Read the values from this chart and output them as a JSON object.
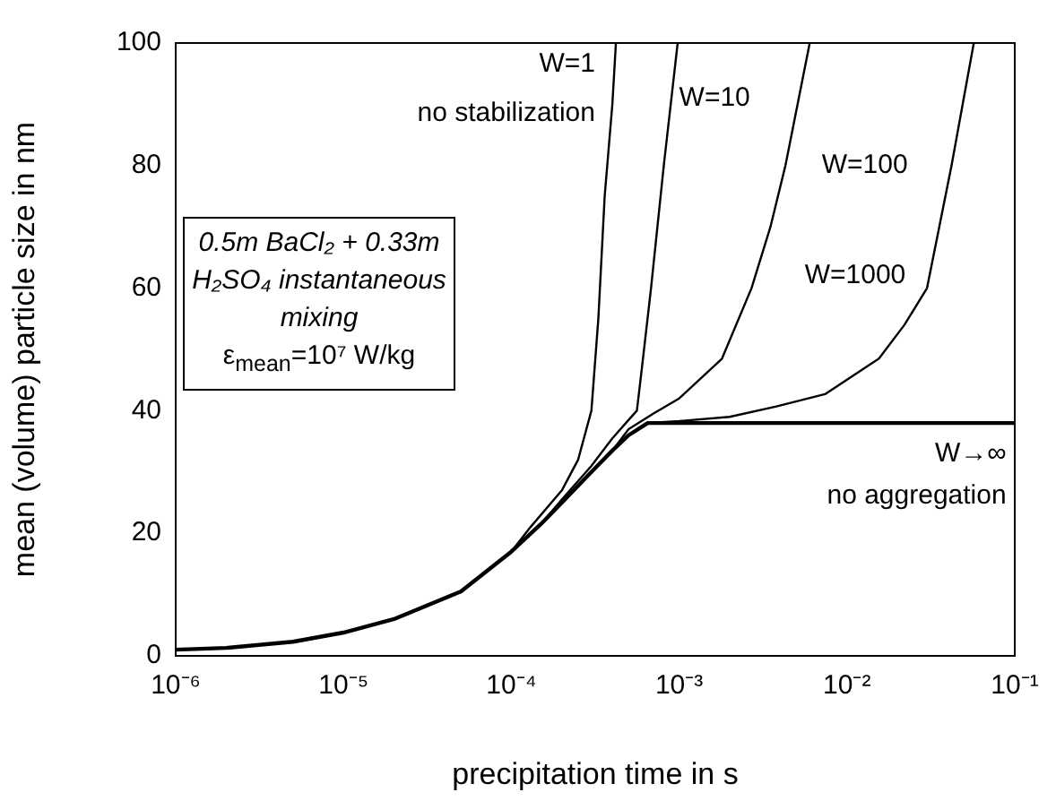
{
  "chart_data": {
    "type": "line",
    "xlabel": "precipitation time in s",
    "ylabel": "mean (volume) particle size in nm",
    "log": "x",
    "grid": false,
    "legend": false,
    "marker": "none",
    "line_style": "solid",
    "xlim": [
      1e-06,
      0.1
    ],
    "xticks": [
      {
        "value": 1e-06,
        "label": "10⁻⁶"
      },
      {
        "value": 1e-05,
        "label": "10⁻⁵"
      },
      {
        "value": 0.0001,
        "label": "10⁻⁴"
      },
      {
        "value": 0.001,
        "label": "10⁻³"
      },
      {
        "value": 0.01,
        "label": "10⁻²"
      },
      {
        "value": 0.1,
        "label": "10⁻¹"
      }
    ],
    "ylim": [
      0,
      100
    ],
    "yticks": [
      0,
      20,
      40,
      60,
      80,
      100
    ],
    "series": [
      {
        "name": "W→∞",
        "color": "#000000",
        "x": [
          1e-06,
          2e-06,
          5e-06,
          1e-05,
          2e-05,
          5e-05,
          0.0001,
          0.00015,
          0.0002,
          0.0003,
          0.0004,
          0.0005,
          0.00065,
          0.1
        ],
        "values": [
          1,
          1.3,
          2.3,
          3.8,
          6,
          10.5,
          17,
          21.5,
          25,
          30,
          33.5,
          36,
          38,
          38
        ]
      },
      {
        "name": "W=1",
        "color": "#000000",
        "x": [
          0.0001,
          0.00013,
          0.0002,
          0.00025,
          0.0003,
          0.00033,
          0.00036,
          0.0004,
          0.00042
        ],
        "values": [
          17,
          21,
          27,
          32,
          40,
          55,
          75,
          90,
          100
        ]
      },
      {
        "name": "W=10",
        "color": "#000000",
        "x": [
          0.00015,
          0.0002,
          0.0003,
          0.0004,
          0.0005,
          0.00056,
          0.0006,
          0.00068,
          0.00081,
          0.00098
        ],
        "values": [
          21.5,
          25.5,
          31,
          35.5,
          38.5,
          40,
          47,
          60,
          80,
          100
        ]
      },
      {
        "name": "W=100",
        "color": "#000000",
        "x": [
          0.0004,
          0.0005,
          0.0007,
          0.001,
          0.0018,
          0.0027,
          0.0035,
          0.0043,
          0.006
        ],
        "values": [
          33.5,
          37,
          39.5,
          42,
          48.5,
          60,
          70,
          80,
          100
        ]
      },
      {
        "name": "W=1000",
        "color": "#000000",
        "x": [
          0.00065,
          0.001,
          0.002,
          0.0038,
          0.0074,
          0.0155,
          0.022,
          0.03,
          0.042,
          0.057
        ],
        "values": [
          38,
          38.3,
          39,
          40.7,
          42.7,
          48.5,
          54,
          60,
          80,
          100
        ]
      }
    ],
    "annotations": [
      "no stabilization",
      "no aggregation",
      "0.5m BaCl₂ + 0.33m H₂SO₄ instantaneous mixing",
      "ε$_{mean}$=10⁷ W/kg"
    ]
  }
}
